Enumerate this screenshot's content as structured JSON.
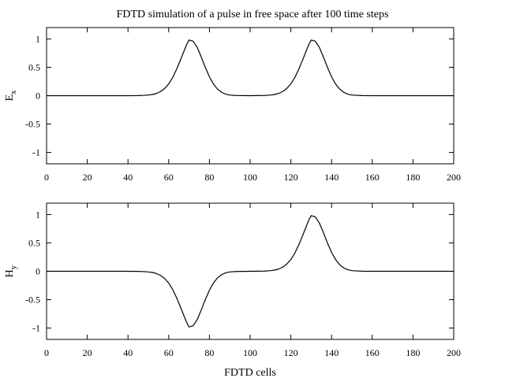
{
  "title": "FDTD simulation of a pulse in free space after 100 time steps",
  "chart_data": [
    {
      "type": "line",
      "ylabel_main": "E",
      "ylabel_sub": "x",
      "xlabel": "",
      "xlim": [
        0,
        200
      ],
      "ylim": [
        -1.2,
        1.2
      ],
      "xticks": [
        0,
        20,
        40,
        60,
        80,
        100,
        120,
        140,
        160,
        180,
        200
      ],
      "yticks": [
        -1,
        -0.5,
        0,
        0.5,
        1
      ],
      "xtick_labels": [
        "0",
        "20",
        "40",
        "60",
        "80",
        "100",
        "120",
        "140",
        "160",
        "180",
        "200"
      ],
      "ytick_labels": [
        "-1",
        "-0.5",
        "0",
        "0.5",
        "1"
      ],
      "grid": false,
      "series": [
        {
          "color": "#000000",
          "x": [
            0,
            40,
            45,
            48,
            50,
            52,
            54,
            56,
            58,
            60,
            62,
            64,
            66,
            68,
            69,
            70,
            72,
            74,
            76,
            78,
            80,
            82,
            84,
            86,
            88,
            90,
            93,
            100,
            107,
            110,
            112,
            114,
            116,
            118,
            120,
            122,
            124,
            126,
            128,
            129,
            130,
            132,
            134,
            136,
            138,
            140,
            142,
            144,
            146,
            148,
            150,
            155,
            160,
            200
          ],
          "y": [
            0,
            0,
            0.002,
            0.006,
            0.011,
            0.021,
            0.04,
            0.073,
            0.127,
            0.208,
            0.323,
            0.475,
            0.649,
            0.831,
            0.914,
            0.981,
            0.96,
            0.851,
            0.681,
            0.498,
            0.333,
            0.204,
            0.115,
            0.059,
            0.027,
            0.011,
            0.003,
            0,
            0.003,
            0.011,
            0.021,
            0.04,
            0.073,
            0.127,
            0.208,
            0.323,
            0.475,
            0.649,
            0.831,
            0.914,
            0.981,
            0.96,
            0.851,
            0.681,
            0.498,
            0.333,
            0.204,
            0.115,
            0.059,
            0.027,
            0.011,
            0.002,
            0,
            0
          ]
        }
      ]
    },
    {
      "type": "line",
      "ylabel_main": "H",
      "ylabel_sub": "y",
      "xlabel": "FDTD cells",
      "xlim": [
        0,
        200
      ],
      "ylim": [
        -1.2,
        1.2
      ],
      "xticks": [
        0,
        20,
        40,
        60,
        80,
        100,
        120,
        140,
        160,
        180,
        200
      ],
      "yticks": [
        -1,
        -0.5,
        0,
        0.5,
        1
      ],
      "xtick_labels": [
        "0",
        "20",
        "40",
        "60",
        "80",
        "100",
        "120",
        "140",
        "160",
        "180",
        "200"
      ],
      "ytick_labels": [
        "-1",
        "-0.5",
        "0",
        "0.5",
        "1"
      ],
      "grid": false,
      "series": [
        {
          "color": "#000000",
          "x": [
            0,
            40,
            45,
            48,
            50,
            52,
            54,
            56,
            58,
            60,
            62,
            64,
            66,
            68,
            69,
            70,
            72,
            74,
            76,
            78,
            80,
            82,
            84,
            86,
            88,
            90,
            93,
            100,
            107,
            110,
            112,
            114,
            116,
            118,
            120,
            122,
            124,
            126,
            128,
            129,
            130,
            132,
            134,
            136,
            138,
            140,
            142,
            144,
            146,
            148,
            150,
            155,
            160,
            200
          ],
          "y": [
            0,
            0,
            -0.002,
            -0.006,
            -0.011,
            -0.021,
            -0.04,
            -0.073,
            -0.127,
            -0.208,
            -0.323,
            -0.475,
            -0.649,
            -0.831,
            -0.914,
            -0.981,
            -0.96,
            -0.851,
            -0.681,
            -0.498,
            -0.333,
            -0.204,
            -0.115,
            -0.059,
            -0.027,
            -0.011,
            -0.003,
            0,
            0.003,
            0.011,
            0.021,
            0.04,
            0.073,
            0.127,
            0.208,
            0.323,
            0.475,
            0.649,
            0.831,
            0.914,
            0.981,
            0.96,
            0.851,
            0.681,
            0.498,
            0.333,
            0.204,
            0.115,
            0.059,
            0.027,
            0.011,
            0.002,
            0,
            0
          ]
        }
      ]
    }
  ]
}
